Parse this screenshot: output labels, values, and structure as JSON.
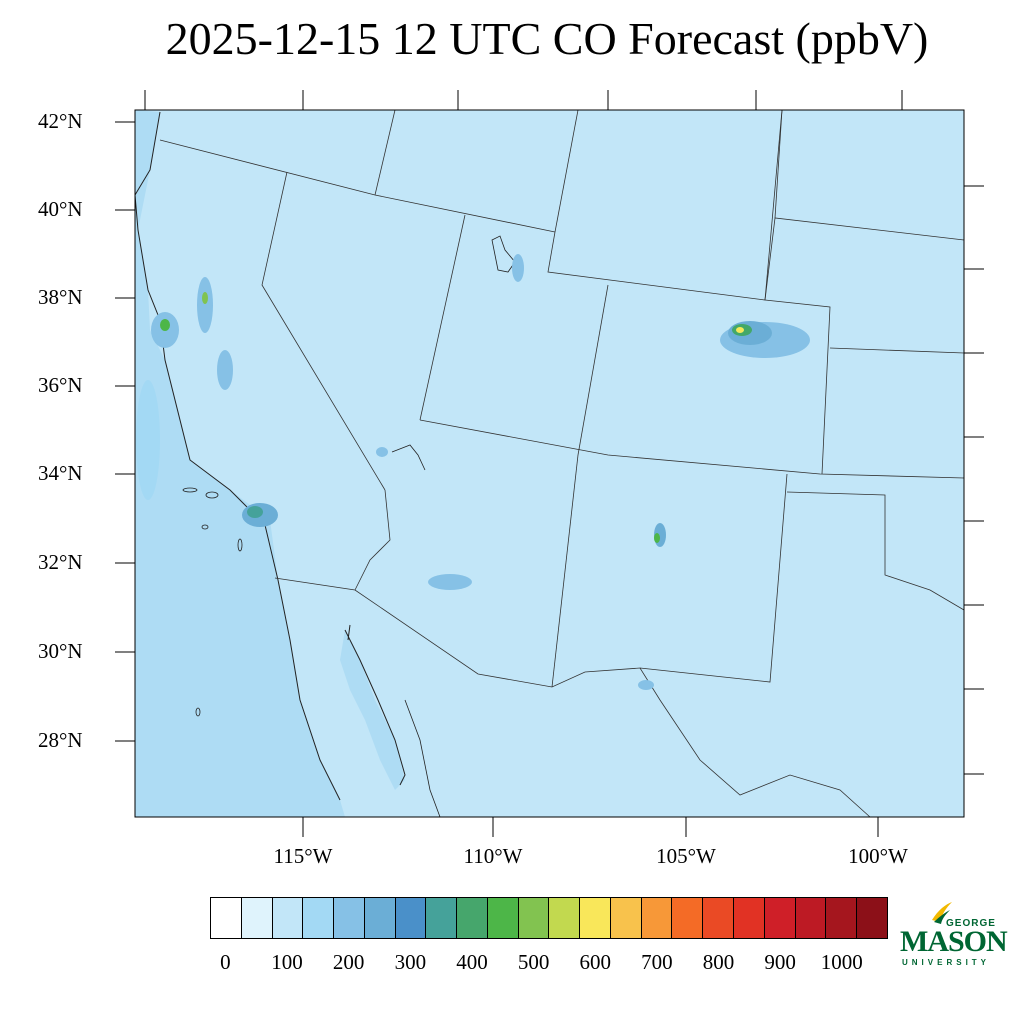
{
  "title": "2025-12-15 12 UTC CO Forecast (ppbV)",
  "map": {
    "lat_labels": [
      "42°N",
      "40°N",
      "38°N",
      "36°N",
      "34°N",
      "32°N",
      "30°N",
      "28°N"
    ],
    "lon_labels": [
      "115°W",
      "110°W",
      "105°W",
      "100°W"
    ],
    "background_color": "#c2e6f8",
    "ocean_color": "#aedcf4",
    "hotspot_colors": [
      "#86c1e6",
      "#6baed6",
      "#4a90c9",
      "#45a29a",
      "#43a868",
      "#4db648",
      "#80c350",
      "#f4e85a"
    ]
  },
  "colorbar": {
    "colors": [
      "#ffffff",
      "#dff3fc",
      "#c2e6f8",
      "#a3d9f4",
      "#86c1e6",
      "#6baed6",
      "#4a90c9",
      "#45a29a",
      "#46a66c",
      "#4db648",
      "#82c350",
      "#c2d94f",
      "#f9e75a",
      "#f8c24c",
      "#f79838",
      "#f46b26",
      "#ea4a25",
      "#e13224",
      "#cf1f28",
      "#bd1a24",
      "#a5161e",
      "#8c1018"
    ],
    "labels": [
      "0",
      "100",
      "200",
      "300",
      "400",
      "500",
      "600",
      "700",
      "800",
      "900",
      "1000"
    ]
  },
  "logo": {
    "line1": "GEORGE",
    "line2": "MASON",
    "line3": "UNIVERSITY",
    "color": "#006633",
    "accent": "#f2b900"
  }
}
